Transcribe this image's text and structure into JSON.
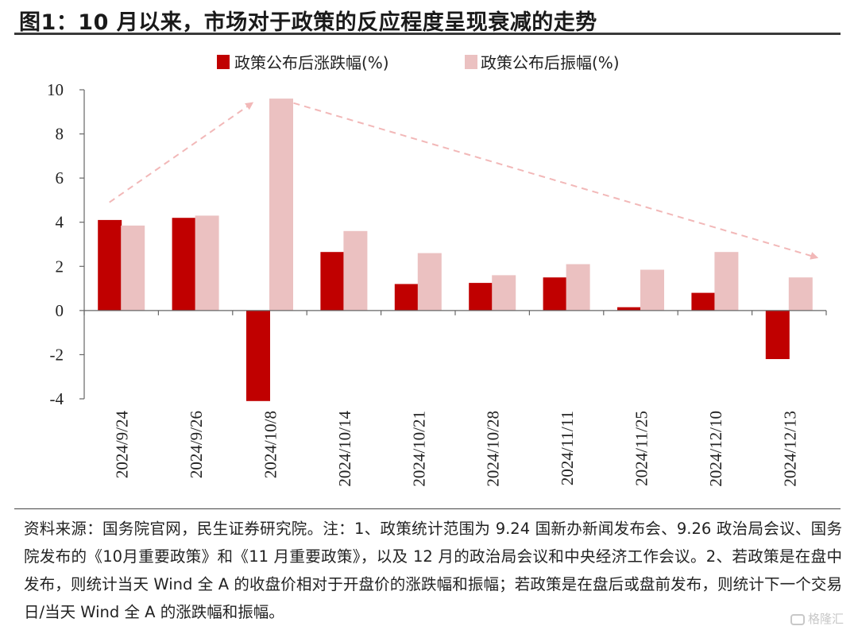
{
  "figure": {
    "title": "图1：10 月以来，市场对于政策的反应程度呈现衰减的走势",
    "source_note": "资料来源：国务院官网，民生证券研究院。注：1、政策统计范围为 9.24 国新办新闻发布会、9.26 政治局会议、国务院发布的《10月重要政策》和《11 月重要政策》，以及 12 月的政治局会议和中央经济工作会议。2、若政策是在盘中发布，则统计当天 Wind 全 A 的收盘价相对于开盘价的涨跌幅和振幅；若政策是在盘后或盘前发布，则统计下一个交易日/当天 Wind 全 A 的涨跌幅和振幅。",
    "watermark": "格隆汇"
  },
  "chart_data": {
    "type": "bar",
    "title": "",
    "xlabel": "",
    "ylabel": "",
    "ylim": [
      -4,
      10
    ],
    "yticks": [
      -4,
      -2,
      0,
      2,
      4,
      6,
      8,
      10
    ],
    "grid": false,
    "legend_position": "top",
    "categories": [
      "2024/9/24",
      "2024/9/26",
      "2024/10/8",
      "2024/10/14",
      "2024/10/21",
      "2024/10/28",
      "2024/11/11",
      "2024/11/25",
      "2024/12/10",
      "2024/12/13"
    ],
    "series": [
      {
        "name": "政策公布后涨跌幅(%)",
        "color": "#c00000",
        "values": [
          4.1,
          4.2,
          -4.1,
          2.65,
          1.2,
          1.25,
          1.5,
          0.15,
          0.8,
          -2.2
        ]
      },
      {
        "name": "政策公布后振幅(%)",
        "color": "#ebc1c1",
        "values": [
          3.85,
          4.3,
          9.6,
          3.6,
          2.6,
          1.6,
          2.1,
          1.85,
          2.65,
          1.5
        ]
      }
    ],
    "annotations": [
      {
        "type": "dashed-arrow",
        "color": "#f2b8b8",
        "from": {
          "x": "2024/9/24",
          "y": 4.9
        },
        "to": {
          "x": "2024/10/8",
          "y": 9.4
        }
      },
      {
        "type": "dashed-arrow",
        "color": "#f2b8b8",
        "from": {
          "x": "2024/10/8",
          "y": 9.4
        },
        "to": {
          "x": "2024/12/13",
          "y": 2.4
        }
      }
    ]
  }
}
